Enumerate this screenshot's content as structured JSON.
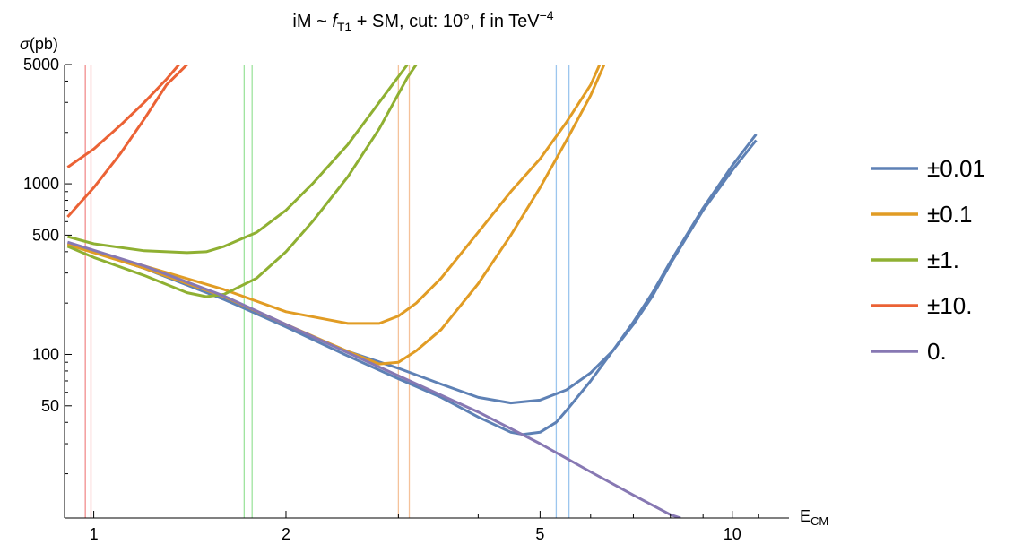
{
  "chart_data": {
    "type": "line",
    "title": {
      "pre": "iM ~ ",
      "italic": "f",
      "sub": "T1",
      "post": " + SM,  cut: 10°,  f in TeV",
      "sup": "−4"
    },
    "ylabel": {
      "symbol": "σ",
      "rest": "(pb)"
    },
    "xlabel": {
      "main": "E",
      "sub": "CM"
    },
    "xscale": "log",
    "yscale": "log",
    "xlim": [
      0.9,
      11.5
    ],
    "ylim": [
      11,
      5000
    ],
    "xticks": [
      1,
      2,
      5,
      10
    ],
    "xtick_labels": [
      "1",
      "2",
      "5",
      "10"
    ],
    "yticks": [
      50,
      100,
      500,
      1000,
      5000
    ],
    "ytick_labels": [
      "50",
      "100",
      "500",
      "1000",
      "5000"
    ],
    "grid": false,
    "legend_position": "right",
    "series": [
      {
        "name": "±0.01",
        "color": "#5E81B5",
        "curves": [
          [
            [
              0.91,
              445
            ],
            [
              1.2,
              320
            ],
            [
              1.6,
              210
            ],
            [
              2.0,
              148
            ],
            [
              2.5,
              104
            ],
            [
              3.0,
              83
            ],
            [
              3.5,
              67
            ],
            [
              4.0,
              56
            ],
            [
              4.5,
              52
            ],
            [
              5.0,
              54
            ],
            [
              5.5,
              62
            ],
            [
              6.0,
              78
            ],
            [
              6.5,
              105
            ],
            [
              7.0,
              150
            ],
            [
              7.5,
              220
            ],
            [
              8.0,
              340
            ],
            [
              9.0,
              700
            ],
            [
              10.0,
              1200
            ],
            [
              10.9,
              1800
            ]
          ],
          [
            [
              0.91,
              445
            ],
            [
              1.2,
              320
            ],
            [
              1.6,
              210
            ],
            [
              2.0,
              145
            ],
            [
              2.5,
              98
            ],
            [
              3.0,
              72
            ],
            [
              3.5,
              56
            ],
            [
              4.0,
              43
            ],
            [
              4.5,
              35
            ],
            [
              4.7,
              34
            ],
            [
              5.0,
              35
            ],
            [
              5.3,
              40
            ],
            [
              5.5,
              47
            ],
            [
              6.0,
              70
            ],
            [
              6.5,
              105
            ],
            [
              7.0,
              155
            ],
            [
              7.5,
              230
            ],
            [
              8.0,
              350
            ],
            [
              9.0,
              720
            ],
            [
              10.0,
              1280
            ],
            [
              10.9,
              1950
            ]
          ]
        ]
      },
      {
        "name": "±0.1",
        "color": "#E19C24",
        "curves": [
          [
            [
              0.91,
              445
            ],
            [
              1.2,
              330
            ],
            [
              1.6,
              240
            ],
            [
              2.0,
              178
            ],
            [
              2.5,
              152
            ],
            [
              2.8,
              152
            ],
            [
              3.0,
              168
            ],
            [
              3.2,
              200
            ],
            [
              3.5,
              280
            ],
            [
              4.0,
              520
            ],
            [
              4.5,
              900
            ],
            [
              5.0,
              1400
            ],
            [
              5.5,
              2300
            ],
            [
              6.0,
              3800
            ],
            [
              6.2,
              5000
            ]
          ],
          [
            [
              0.91,
              440
            ],
            [
              1.2,
              320
            ],
            [
              1.6,
              218
            ],
            [
              2.0,
              150
            ],
            [
              2.5,
              104
            ],
            [
              2.8,
              88
            ],
            [
              3.0,
              90
            ],
            [
              3.2,
              105
            ],
            [
              3.5,
              140
            ],
            [
              4.0,
              260
            ],
            [
              4.5,
              500
            ],
            [
              5.0,
              950
            ],
            [
              5.5,
              1800
            ],
            [
              6.0,
              3300
            ],
            [
              6.3,
              5000
            ]
          ]
        ]
      },
      {
        "name": "±1.",
        "color": "#8FB032",
        "curves": [
          [
            [
              0.91,
              490
            ],
            [
              1.0,
              445
            ],
            [
              1.2,
              405
            ],
            [
              1.4,
              395
            ],
            [
              1.5,
              400
            ],
            [
              1.6,
              430
            ],
            [
              1.8,
              520
            ],
            [
              2.0,
              700
            ],
            [
              2.2,
              1000
            ],
            [
              2.5,
              1700
            ],
            [
              2.8,
              3000
            ],
            [
              3.1,
              5000
            ]
          ],
          [
            [
              0.91,
              430
            ],
            [
              1.0,
              370
            ],
            [
              1.2,
              290
            ],
            [
              1.4,
              230
            ],
            [
              1.5,
              218
            ],
            [
              1.6,
              225
            ],
            [
              1.8,
              280
            ],
            [
              2.0,
              400
            ],
            [
              2.2,
              600
            ],
            [
              2.5,
              1100
            ],
            [
              2.8,
              2100
            ],
            [
              3.1,
              4200
            ],
            [
              3.2,
              5000
            ]
          ]
        ]
      },
      {
        "name": "±10.",
        "color": "#EB6235",
        "curves": [
          [
            [
              0.91,
              1250
            ],
            [
              1.0,
              1600
            ],
            [
              1.1,
              2200
            ],
            [
              1.2,
              3000
            ],
            [
              1.3,
              4100
            ],
            [
              1.36,
              5000
            ]
          ],
          [
            [
              0.91,
              640
            ],
            [
              1.0,
              950
            ],
            [
              1.1,
              1500
            ],
            [
              1.2,
              2400
            ],
            [
              1.3,
              3800
            ],
            [
              1.4,
              5000
            ]
          ]
        ]
      },
      {
        "name": "0.",
        "color": "#8778B3",
        "curves": [
          [
            [
              0.91,
              455
            ],
            [
              1.2,
              330
            ],
            [
              1.6,
              220
            ],
            [
              2.0,
              150
            ],
            [
              3.0,
              75
            ],
            [
              4.0,
              46
            ],
            [
              5.0,
              30
            ],
            [
              6.0,
              20.5
            ],
            [
              7.0,
              15
            ],
            [
              8.0,
              11.5
            ],
            [
              8.3,
              11
            ]
          ]
        ]
      }
    ],
    "cut_lines": [
      {
        "color": "#F28E8E",
        "x": [
          0.97,
          0.99
        ]
      },
      {
        "color": "#9EE39E",
        "x": [
          1.72,
          1.77
        ]
      },
      {
        "color": "#F5C29A",
        "x": [
          3.0,
          3.12
        ]
      },
      {
        "color": "#9CC6EE",
        "x": [
          5.3,
          5.55
        ]
      }
    ]
  }
}
